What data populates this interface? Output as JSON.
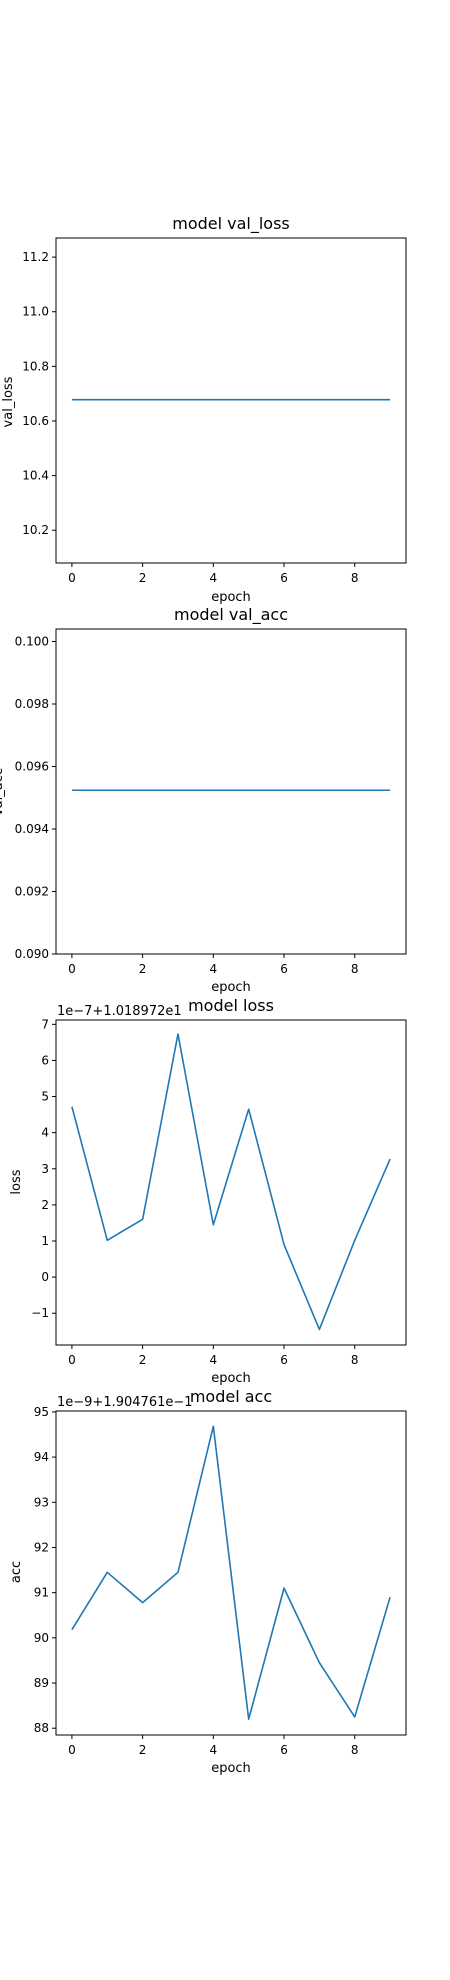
{
  "chart_data": [
    {
      "type": "line",
      "title": "model val_loss",
      "xlabel": "epoch",
      "ylabel": "val_loss",
      "offset_label": "",
      "x": [
        0,
        1,
        2,
        3,
        4,
        5,
        6,
        7,
        8,
        9
      ],
      "xlim": [
        -0.45,
        9.45
      ],
      "ylim": [
        10.08,
        11.27
      ],
      "xticks": [
        0,
        2,
        4,
        6,
        8
      ],
      "yticks": [
        10.2,
        10.4,
        10.6,
        10.8,
        11.0,
        11.2
      ],
      "ytick_labels": [
        "10.2",
        "10.4",
        "10.6",
        "10.8",
        "11.0",
        "11.2"
      ],
      "grid": false,
      "series": [
        {
          "values": [
            10.678,
            10.678,
            10.678,
            10.678,
            10.678,
            10.678,
            10.678,
            10.678,
            10.678,
            10.678
          ],
          "color": "#1f77b4"
        }
      ]
    },
    {
      "type": "line",
      "title": "model val_acc",
      "xlabel": "epoch",
      "ylabel": "val_acc",
      "offset_label": "",
      "x": [
        0,
        1,
        2,
        3,
        4,
        5,
        6,
        7,
        8,
        9
      ],
      "xlim": [
        -0.45,
        9.45
      ],
      "ylim": [
        0.09,
        0.1004
      ],
      "xticks": [
        0,
        2,
        4,
        6,
        8
      ],
      "yticks": [
        0.09,
        0.092,
        0.094,
        0.096,
        0.098,
        0.1
      ],
      "ytick_labels": [
        "0.090",
        "0.092",
        "0.094",
        "0.096",
        "0.098",
        "0.100"
      ],
      "grid": false,
      "series": [
        {
          "values": [
            0.09524,
            0.09524,
            0.09524,
            0.09524,
            0.09524,
            0.09524,
            0.09524,
            0.09524,
            0.09524,
            0.09524
          ],
          "color": "#1f77b4"
        }
      ]
    },
    {
      "type": "line",
      "title": "model loss",
      "xlabel": "epoch",
      "ylabel": "loss",
      "offset_label": "1e−7+1.018972e1",
      "x": [
        0,
        1,
        2,
        3,
        4,
        5,
        6,
        7,
        8,
        9
      ],
      "xlim": [
        -0.45,
        9.45
      ],
      "ylim": [
        -1.88,
        7.12
      ],
      "xticks": [
        0,
        2,
        4,
        6,
        8
      ],
      "yticks": [
        -1,
        0,
        1,
        2,
        3,
        4,
        5,
        6,
        7
      ],
      "ytick_labels": [
        "−1",
        "0",
        "1",
        "2",
        "3",
        "4",
        "5",
        "6",
        "7"
      ],
      "grid": false,
      "series": [
        {
          "values": [
            4.72,
            1.02,
            1.6,
            6.73,
            1.45,
            4.65,
            0.9,
            -1.45,
            1.02,
            3.27
          ],
          "color": "#1f77b4"
        }
      ]
    },
    {
      "type": "line",
      "title": "model acc",
      "xlabel": "epoch",
      "ylabel": "acc",
      "offset_label": "1e−9+1.904761e−1",
      "x": [
        0,
        1,
        2,
        3,
        4,
        5,
        6,
        7,
        8,
        9
      ],
      "xlim": [
        -0.45,
        9.45
      ],
      "ylim": [
        87.85,
        95.02
      ],
      "xticks": [
        0,
        2,
        4,
        6,
        8
      ],
      "yticks": [
        88,
        89,
        90,
        91,
        92,
        93,
        94,
        95
      ],
      "ytick_labels": [
        "88",
        "89",
        "90",
        "91",
        "92",
        "93",
        "94",
        "95"
      ],
      "grid": false,
      "series": [
        {
          "values": [
            90.18,
            91.45,
            90.78,
            91.45,
            94.68,
            88.2,
            91.1,
            89.45,
            88.25,
            90.9
          ],
          "color": "#1f77b4"
        }
      ]
    }
  ]
}
